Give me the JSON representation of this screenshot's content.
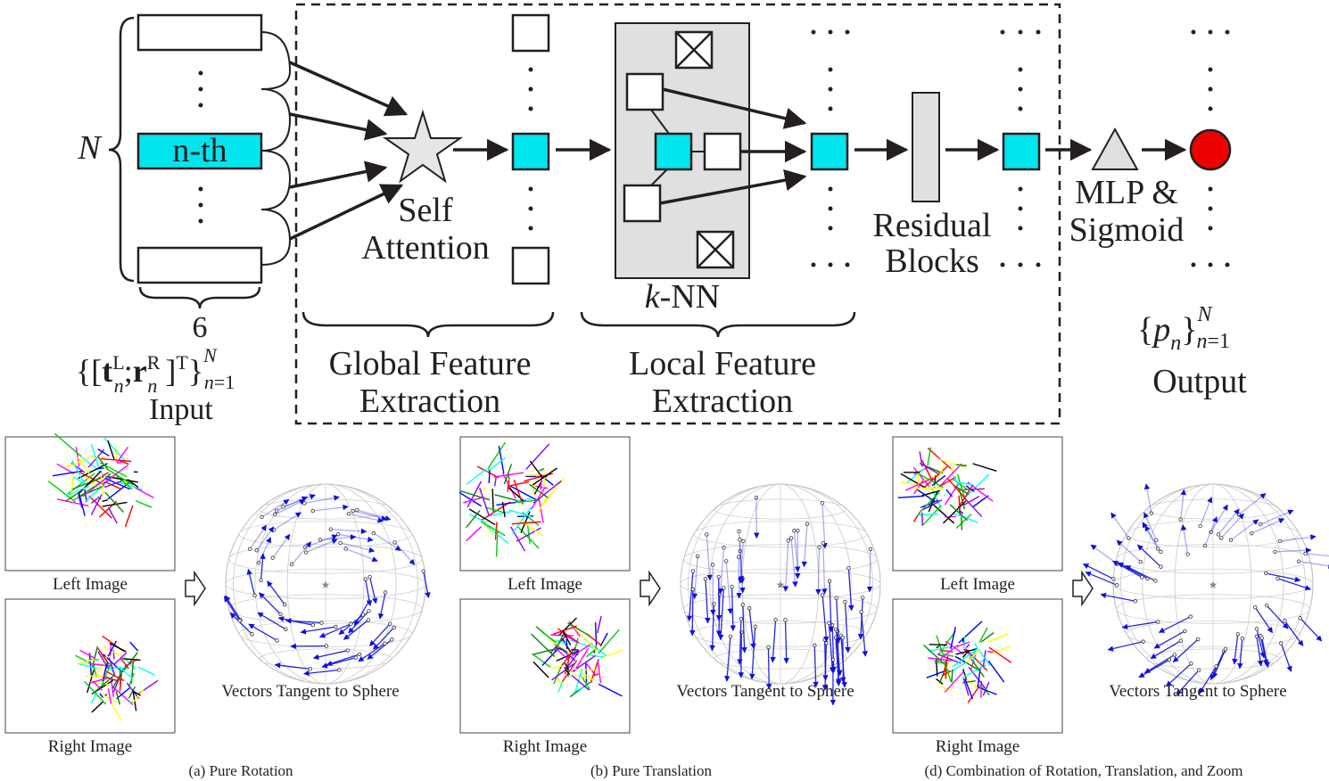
{
  "top": {
    "n_label": "N",
    "input_row_label": "n-th",
    "dim_label": "6",
    "input_formula": "{[t_n^L; r_n^R]^T}_{n=1}^N",
    "input_caption": "Input",
    "self_attention": [
      "Self",
      "Attention"
    ],
    "knn_label": "k-NN",
    "residual_blocks": [
      "Residual",
      "Blocks"
    ],
    "mlp_sigmoid": [
      "MLP &",
      "Sigmoid"
    ],
    "global_feature": [
      "Global Feature",
      "Extraction"
    ],
    "local_feature": [
      "Local Feature",
      "Extraction"
    ],
    "output_formula": "{p_n}_{n=1}^N",
    "output_caption": "Output"
  },
  "panels": [
    {
      "left": "Left Image",
      "right": "Right Image",
      "sphere": "Vectors Tangent to Sphere",
      "caption": "(a) Pure Rotation"
    },
    {
      "left": "Left Image",
      "right": "Right Image",
      "sphere": "Vectors Tangent to Sphere",
      "caption": "(b) Pure Translation"
    },
    {
      "left": "Left Image",
      "right": "Right Image",
      "sphere": "Vectors Tangent to Sphere",
      "caption": "(d) Combination of Rotation, Translation, and Zoom"
    }
  ],
  "colors": {
    "cyan": "#00e5ee",
    "output_dot": "#ee0000",
    "star_fill": "#e6e6e6",
    "knn_bg": "#e0e0e0",
    "vector_blue": "#1010dd"
  },
  "line_palette": [
    "#ff0000",
    "#00cc00",
    "#0000ff",
    "#ffff00",
    "#ff00ff",
    "#00ffff",
    "#000000",
    "#008800",
    "#8800ff"
  ]
}
